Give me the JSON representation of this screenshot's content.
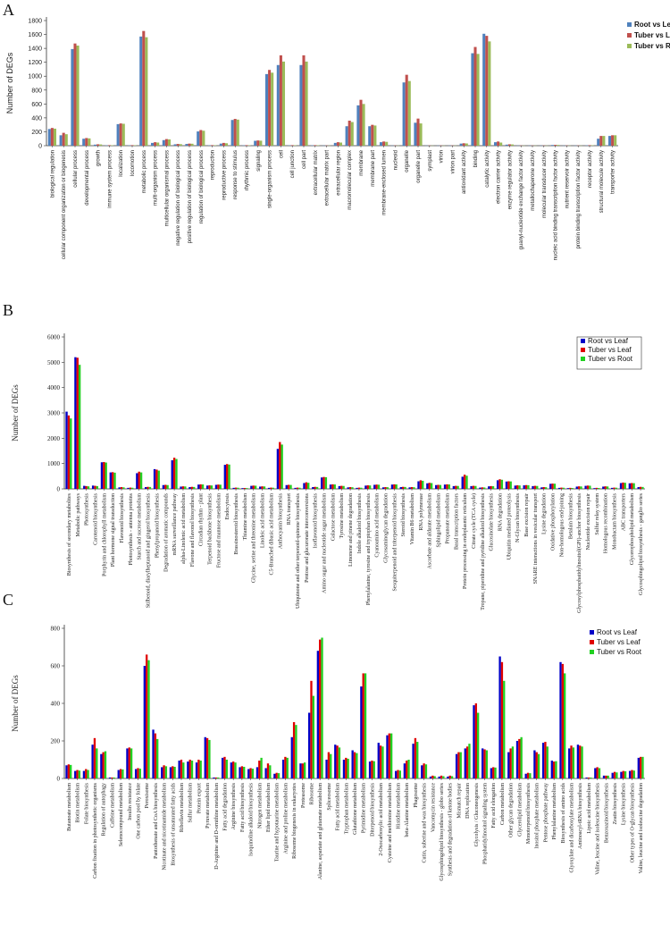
{
  "chart_data": [
    {
      "panel": "A",
      "type": "bar",
      "title": "",
      "xlabel": "",
      "ylabel": "Number of DEGs",
      "ylim": [
        0,
        1800
      ],
      "yticks": [
        0,
        200,
        400,
        600,
        800,
        1000,
        1200,
        1400,
        1600,
        1800
      ],
      "legend_position": "top-right",
      "categories": [
        "biological regulation",
        "cellular component organization or biogenesis",
        "cellular process",
        "developmental process",
        "growth",
        "immune system process",
        "localization",
        "locomotion",
        "metabolic process",
        "multi-organism process",
        "multicellular organismal process",
        "negative regulation of biological process",
        "positive regulation of biological process",
        "regulation of biological process",
        "reproduction",
        "reproductive process",
        "response to stimulus",
        "rhythmic process",
        "signaling",
        "single-organism process",
        "cell",
        "cell junction",
        "cell part",
        "extracellular matrix",
        "extracellular matrix part",
        "extracellular region",
        "macromolecular complex",
        "membrane",
        "membrane part",
        "membrane-enclosed lumen",
        "nucleoid",
        "organelle",
        "organelle part",
        "symplast",
        "virion",
        "virion part",
        "antioxidant activity",
        "binding",
        "catalytic activity",
        "electron carrier activity",
        "enzyme regulator activity",
        "guanyl-nucleotide exchange factor activity",
        "metallochaperone activity",
        "molecular transducer activity",
        "nucleic acid binding transcription factor activity",
        "nutrient reservoir activity",
        "protein binding transcription factor activity",
        "receptor activity",
        "structural molecule activity",
        "transporter activity"
      ],
      "series": [
        {
          "name": "Root vs Leaf",
          "color": "#4f81bd",
          "values": [
            240,
            150,
            1390,
            100,
            15,
            5,
            310,
            5,
            1570,
            40,
            80,
            20,
            25,
            205,
            5,
            30,
            370,
            5,
            70,
            1030,
            1160,
            5,
            1160,
            5,
            2,
            40,
            280,
            580,
            280,
            50,
            2,
            910,
            330,
            2,
            2,
            2,
            30,
            1330,
            1610,
            50,
            15,
            2,
            2,
            2,
            10,
            2,
            2,
            5,
            100,
            140
          ]
        },
        {
          "name": "Tuber vs Leaf",
          "color": "#c0504d",
          "values": [
            255,
            185,
            1470,
            110,
            20,
            8,
            320,
            8,
            1650,
            50,
            95,
            25,
            30,
            225,
            8,
            40,
            385,
            8,
            75,
            1090,
            1300,
            8,
            1300,
            8,
            3,
            50,
            360,
            660,
            300,
            60,
            3,
            1020,
            390,
            3,
            3,
            3,
            35,
            1420,
            1580,
            60,
            20,
            3,
            3,
            3,
            12,
            3,
            3,
            8,
            140,
            150
          ]
        },
        {
          "name": "Tuber vs Root",
          "color": "#9bbb59",
          "values": [
            245,
            165,
            1440,
            105,
            18,
            6,
            315,
            6,
            1560,
            45,
            90,
            22,
            28,
            215,
            6,
            35,
            375,
            6,
            72,
            1050,
            1210,
            6,
            1210,
            6,
            2,
            45,
            340,
            600,
            290,
            55,
            2,
            930,
            320,
            2,
            2,
            2,
            32,
            1320,
            1500,
            45,
            18,
            2,
            2,
            2,
            11,
            2,
            2,
            6,
            140,
            150
          ]
        }
      ]
    },
    {
      "panel": "B",
      "type": "bar",
      "title": "",
      "xlabel": "",
      "ylabel": "Number of DEGs",
      "ylim": [
        0,
        6000
      ],
      "yticks": [
        0,
        1000,
        2000,
        3000,
        4000,
        5000,
        6000
      ],
      "legend_position": "top-right",
      "categories": [
        "Biosynthesis of secondary metabolites",
        "Metabolic pathways",
        "Photosynthesis",
        "Carotenoid biosynthesis",
        "Porphyrin and chlorophyll metabolism",
        "Plant hormone signal transduction",
        "Flavonoid biosynthesis",
        "Photosynthesis - antenna proteins",
        "Starch and sucrose metabolism",
        "Stilbenoid, diarylheptanoid and gingerol biosynthesis",
        "Phenylpropanoid biosynthesis",
        "Degradation of aromatic compounds",
        "mRNA surveillance pathway",
        "alpha-Linolenic acid metabolism",
        "Flavone and flavonol biosynthesis",
        "Circadian rhythm - plant",
        "Terpenoid backbone biosynthesis",
        "Fructose and mannose metabolism",
        "Endocytosis",
        "Brassinosteroid biosynthesis",
        "Thiamine metabolism",
        "Glycine, serine and threonine metabolism",
        "Linoleic acid metabolism",
        "C5-Branched dibasic acid metabolism",
        "Anthocyanin biosynthesis",
        "RNA transport",
        "Ubiquinone and other terpenoid-quinone biosynthesis",
        "Pentose and glucuronate interconversions",
        "Isoflavonoid biosynthesis",
        "Amino sugar and nucleotide sugar metabolism",
        "Galactose metabolism",
        "Tyrosine metabolism",
        "Limonene and pinene degradation",
        "Indole alkaloid biosynthesis",
        "Phenylalanine, tyrosine and tryptophan biosynthesis",
        "Cyanoamino acid metabolism",
        "Glycosaminoglycan degradation",
        "Sesquiterpenoid and triterpenoid biosynthesis",
        "Steroid biosynthesis",
        "Vitamin B6 metabolism",
        "RNA polymerase",
        "Ascorbate and aldarate metabolism",
        "Sphingolipid metabolism",
        "Propanoate metabolism",
        "Basal transcription factors",
        "Protein processing in endoplasmic reticulum",
        "Citrate cycle (TCA cycle)",
        "Tropane, piperidine and pyridine alkaloid biosynthesis",
        "Glucosinolate biosynthesis",
        "RNA degradation",
        "Ubiquitin mediated proteolysis",
        "N-Glycan biosynthesis",
        "Base excision repair",
        "SNARE interactions in vesicular transport",
        "Lysine degradation",
        "Oxidative phosphorylation",
        "Non-homologous end-joining",
        "Betalain biosynthesis",
        "Glycosylphosphatidylinositol(GPI)-anchor biosynthesis",
        "Nucleotide excision repair",
        "Sulfur relay system",
        "Homologous recombination",
        "Monobactam biosynthesis",
        "ABC transporters",
        "Glycerophospholipid metabolism",
        "Glycosphingolipid biosynthesis - ganglio series"
      ],
      "series": [
        {
          "name": "Root vs Leaf",
          "color": "#0000c8",
          "values": [
            3050,
            5200,
            120,
            130,
            1050,
            650,
            60,
            40,
            620,
            70,
            780,
            150,
            1130,
            90,
            70,
            170,
            130,
            160,
            950,
            40,
            30,
            120,
            90,
            40,
            1580,
            150,
            40,
            230,
            70,
            450,
            170,
            110,
            60,
            40,
            130,
            160,
            60,
            170,
            70,
            60,
            300,
            220,
            150,
            170,
            110,
            480,
            110,
            50,
            100,
            340,
            290,
            130,
            140,
            110,
            60,
            200,
            40,
            30,
            90,
            120,
            30,
            90,
            40,
            230,
            220,
            70
          ]
        },
        {
          "name": "Tuber vs Leaf",
          "color": "#e00000",
          "values": [
            2900,
            5180,
            110,
            120,
            1060,
            660,
            70,
            50,
            680,
            80,
            760,
            160,
            1230,
            100,
            80,
            180,
            140,
            170,
            980,
            50,
            35,
            130,
            100,
            50,
            1850,
            160,
            50,
            260,
            80,
            470,
            180,
            120,
            70,
            50,
            140,
            170,
            70,
            180,
            80,
            70,
            340,
            240,
            160,
            180,
            120,
            560,
            120,
            60,
            110,
            380,
            300,
            140,
            150,
            120,
            70,
            210,
            50,
            40,
            100,
            130,
            40,
            100,
            50,
            250,
            230,
            80
          ]
        },
        {
          "name": "Tuber vs Root",
          "color": "#20d020",
          "values": [
            2780,
            4900,
            100,
            110,
            1040,
            640,
            60,
            45,
            650,
            75,
            720,
            150,
            1180,
            95,
            75,
            175,
            135,
            165,
            960,
            45,
            32,
            125,
            95,
            45,
            1750,
            155,
            45,
            240,
            75,
            460,
            175,
            115,
            65,
            45,
            135,
            165,
            65,
            175,
            75,
            65,
            320,
            230,
            155,
            175,
            115,
            520,
            115,
            55,
            105,
            360,
            295,
            135,
            145,
            115,
            65,
            205,
            45,
            35,
            95,
            125,
            35,
            95,
            45,
            240,
            225,
            75
          ]
        }
      ]
    },
    {
      "panel": "C",
      "type": "bar",
      "title": "",
      "xlabel": "",
      "ylabel": "Number of DEGs",
      "ylim": [
        0,
        800
      ],
      "yticks": [
        0,
        200,
        400,
        600,
        800
      ],
      "legend_position": "top-right",
      "categories": [
        "Butanoate metabolism",
        "Biotin metabolism",
        "Folate biosynthesis",
        "Carbon fixation in photosynthetic organisms",
        "Regulation of autophagy",
        "Caffeine metabolism",
        "Selenocompound metabolism",
        "Insulin resistance",
        "One carbon pool by folate",
        "Peroxisome",
        "Pantothenate and CoA biosynthesis",
        "Nicotinate and nicotinamide metabolism",
        "Biosynthesis of unsaturated fatty acids",
        "Riboflavin metabolism",
        "Sulfur metabolism",
        "Protein export",
        "Pyruvate metabolism",
        "D-Arginine and D-ornithine metabolism",
        "Fatty acid degradation",
        "Arginine biosynthesis",
        "Fatty acid biosynthesis",
        "Isoquinoline alkaloid biosynthesis",
        "Nitrogen metabolism",
        "Ether lipid metabolism",
        "Taurine and hypotaurine metabolism",
        "Arginine and proline metabolism",
        "Ribosome biogenesis in eukaryotes",
        "Proteasome",
        "Ribosome",
        "Alanine, aspartate and glutamate metabolism",
        "Spliceosome",
        "Fatty acid metabolism",
        "Tryptophan metabolism",
        "Glutathione metabolism",
        "Pyrimidine metabolism",
        "Diterpenoid biosynthesis",
        "2-Oxocarboxylic acid metabolism",
        "Cysteine and methionine metabolism",
        "Histidine metabolism",
        "beta-Alanine metabolism",
        "Phagosome",
        "Cutin, suberine and wax biosynthesis",
        "Vancomycin resistance",
        "Glycosphingolipid biosynthesis - globo series",
        "Synthesis and degradation of ketone bodies",
        "Mismatch repair",
        "DNA replication",
        "Glycolysis / Gluconeogenesis",
        "Phosphatidylinositol signaling system",
        "Fatty acid elongation",
        "Carbon metabolism",
        "Other glycan degradation",
        "Glycerolipid metabolism",
        "Monoterpenoid biosynthesis",
        "Inositol phosphate metabolism",
        "Pentose phosphate pathway",
        "Phenylalanine metabolism",
        "Biosynthesis of amino acids",
        "Glyoxylate and dicarboxylate metabolism",
        "Aminoacyl-tRNA biosynthesis",
        "Lipoic acid metabolism",
        "Valine, leucine and isoleucine biosynthesis",
        "Benzoxazinoid biosynthesis",
        "Zeatin biosynthesis",
        "Lysine biosynthesis",
        "Other types of O-glycan biosynthesis",
        "Valine, leucine and isoleucine degradation"
      ],
      "series": [
        {
          "name": "Root vs Leaf",
          "color": "#0000c8",
          "values": [
            70,
            40,
            40,
            180,
            130,
            5,
            45,
            160,
            50,
            600,
            260,
            60,
            60,
            95,
            90,
            85,
            220,
            5,
            110,
            85,
            60,
            50,
            60,
            55,
            25,
            100,
            220,
            80,
            350,
            680,
            100,
            180,
            100,
            150,
            490,
            90,
            190,
            230,
            40,
            80,
            185,
            70,
            10,
            10,
            10,
            130,
            160,
            390,
            160,
            55,
            650,
            140,
            200,
            25,
            150,
            190,
            95,
            620,
            160,
            180,
            5,
            55,
            15,
            30,
            35,
            40,
            110
          ]
        },
        {
          "name": "Tuber vs Leaf",
          "color": "#e00000",
          "values": [
            75,
            45,
            50,
            215,
            140,
            5,
            50,
            165,
            55,
            660,
            240,
            70,
            65,
            100,
            100,
            100,
            215,
            5,
            115,
            90,
            65,
            55,
            95,
            80,
            30,
            115,
            300,
            80,
            520,
            740,
            140,
            175,
            110,
            140,
            560,
            95,
            175,
            240,
            45,
            95,
            215,
            80,
            15,
            15,
            15,
            140,
            170,
            400,
            155,
            60,
            620,
            160,
            210,
            30,
            140,
            195,
            90,
            610,
            175,
            175,
            5,
            60,
            15,
            35,
            40,
            45,
            115
          ]
        },
        {
          "name": "Tuber vs Root",
          "color": "#20d020",
          "values": [
            72,
            42,
            45,
            160,
            145,
            5,
            48,
            160,
            52,
            630,
            210,
            65,
            62,
            85,
            95,
            95,
            205,
            5,
            100,
            85,
            62,
            52,
            110,
            70,
            28,
            110,
            285,
            85,
            440,
            750,
            130,
            165,
            105,
            135,
            560,
            92,
            170,
            240,
            42,
            100,
            195,
            75,
            12,
            12,
            12,
            140,
            185,
            350,
            150,
            58,
            520,
            170,
            220,
            28,
            130,
            170,
            92,
            560,
            165,
            170,
            5,
            55,
            15,
            32,
            38,
            42,
            115
          ]
        }
      ]
    }
  ],
  "panel_labels": {
    "A": "A",
    "B": "B",
    "C": "C"
  }
}
